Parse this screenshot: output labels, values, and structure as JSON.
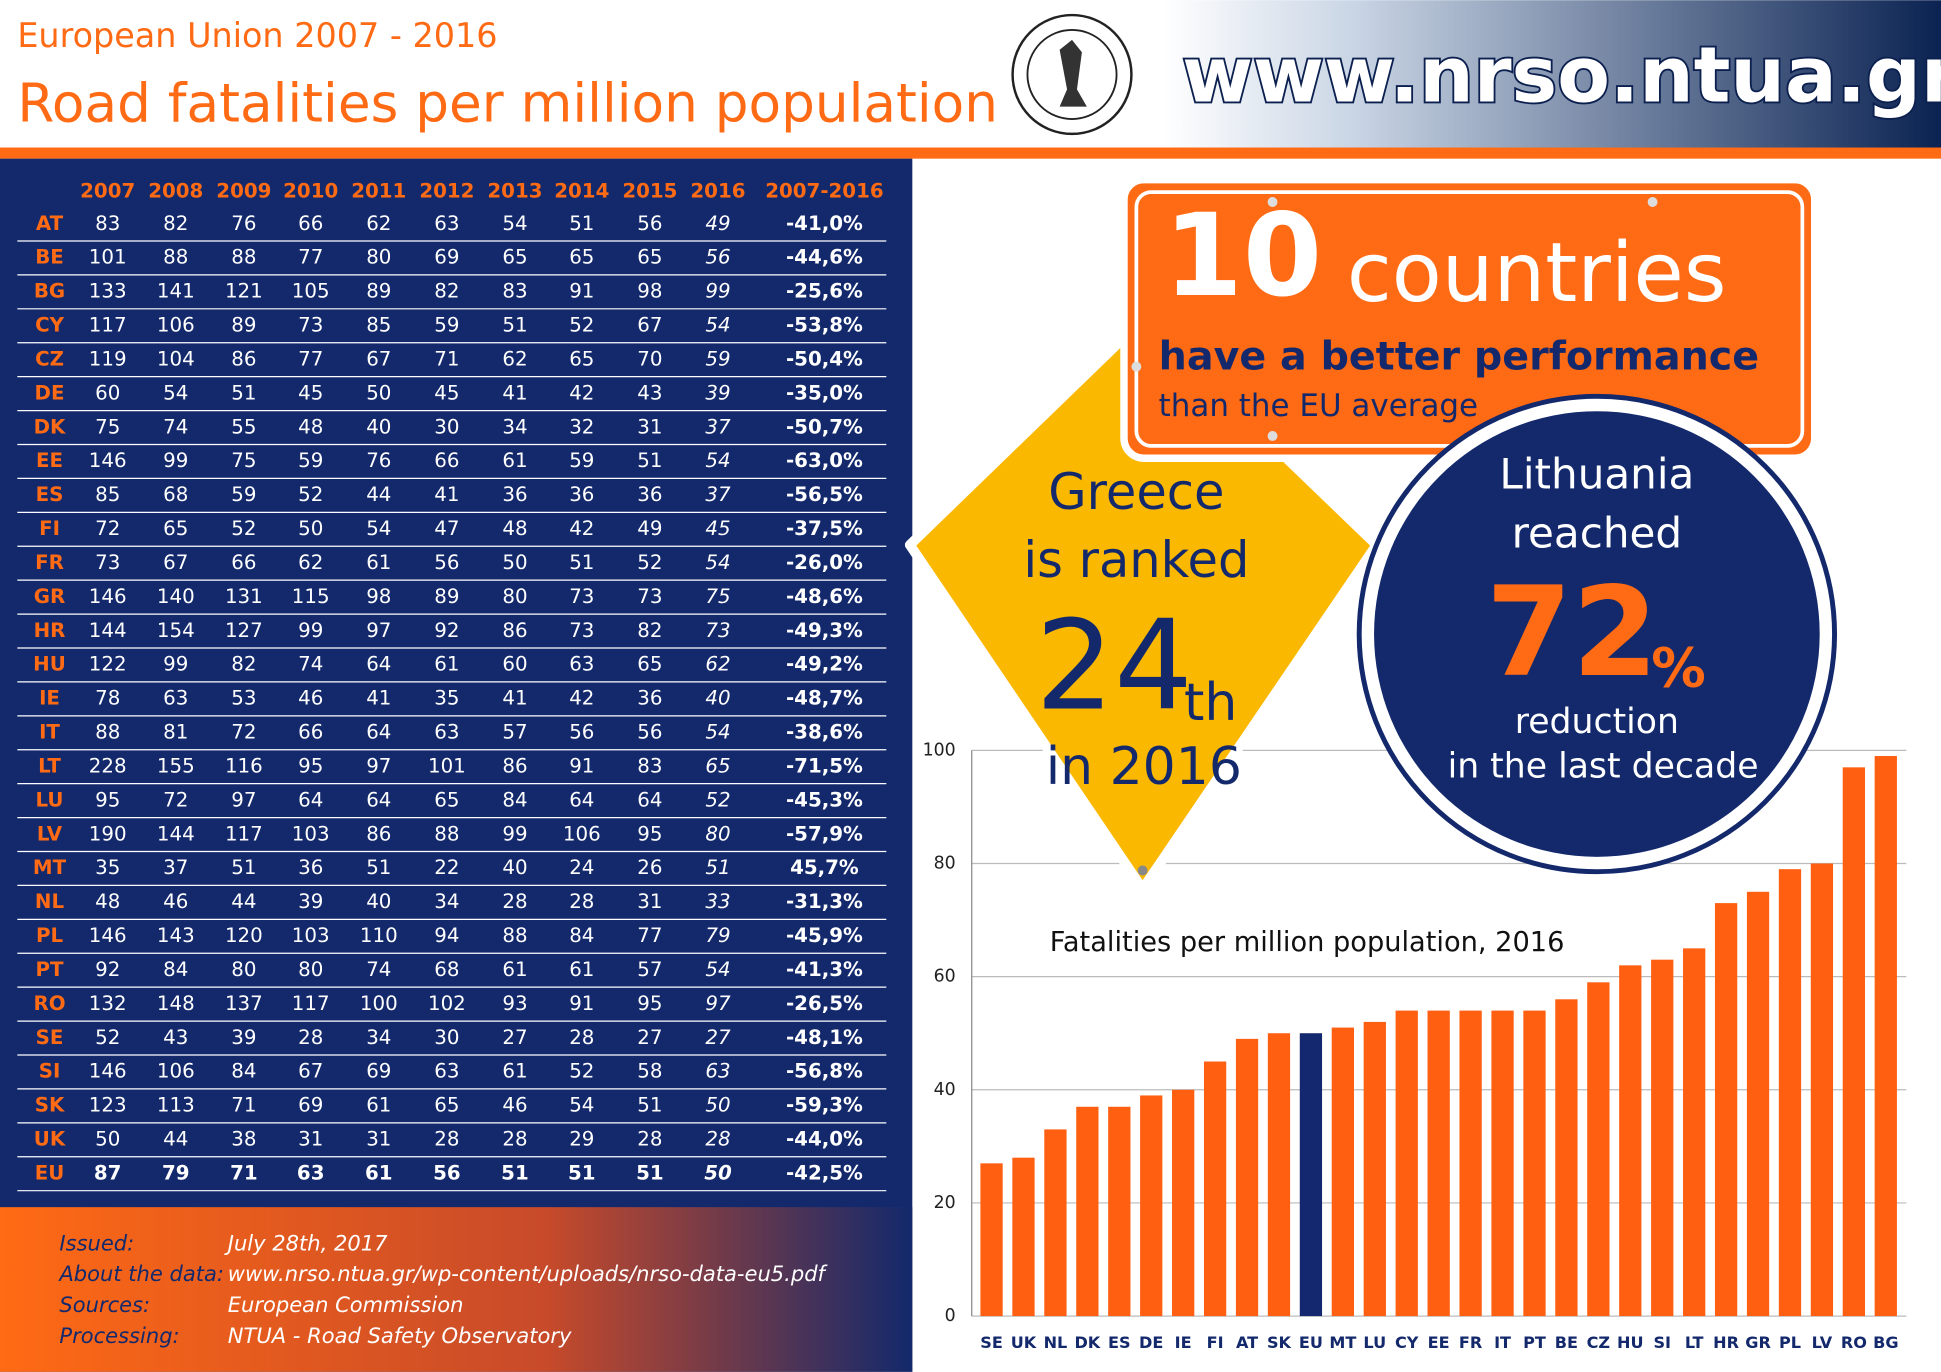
{
  "header": {
    "subtitle": "European Union 2007 - 2016",
    "title": "Road fatalities per million population",
    "url": "www.nrso.ntua.gr"
  },
  "table": {
    "columns": [
      "2007",
      "2008",
      "2009",
      "2010",
      "2011",
      "2012",
      "2013",
      "2014",
      "2015",
      "2016",
      "2007-2016"
    ],
    "rows": [
      {
        "label": "AT",
        "values": [
          83,
          82,
          76,
          66,
          62,
          63,
          54,
          51,
          56,
          49
        ],
        "change": "-41,0%"
      },
      {
        "label": "BE",
        "values": [
          101,
          88,
          88,
          77,
          80,
          69,
          65,
          65,
          65,
          56
        ],
        "change": "-44,6%"
      },
      {
        "label": "BG",
        "values": [
          133,
          141,
          121,
          105,
          89,
          82,
          83,
          91,
          98,
          99
        ],
        "change": "-25,6%"
      },
      {
        "label": "CY",
        "values": [
          117,
          106,
          89,
          73,
          85,
          59,
          51,
          52,
          67,
          54
        ],
        "change": "-53,8%"
      },
      {
        "label": "CZ",
        "values": [
          119,
          104,
          86,
          77,
          67,
          71,
          62,
          65,
          70,
          59
        ],
        "change": "-50,4%"
      },
      {
        "label": "DE",
        "values": [
          60,
          54,
          51,
          45,
          50,
          45,
          41,
          42,
          43,
          39
        ],
        "change": "-35,0%"
      },
      {
        "label": "DK",
        "values": [
          75,
          74,
          55,
          48,
          40,
          30,
          34,
          32,
          31,
          37
        ],
        "change": "-50,7%"
      },
      {
        "label": "EE",
        "values": [
          146,
          99,
          75,
          59,
          76,
          66,
          61,
          59,
          51,
          54
        ],
        "change": "-63,0%"
      },
      {
        "label": "ES",
        "values": [
          85,
          68,
          59,
          52,
          44,
          41,
          36,
          36,
          36,
          37
        ],
        "change": "-56,5%"
      },
      {
        "label": "FI",
        "values": [
          72,
          65,
          52,
          50,
          54,
          47,
          48,
          42,
          49,
          45
        ],
        "change": "-37,5%"
      },
      {
        "label": "FR",
        "values": [
          73,
          67,
          66,
          62,
          61,
          56,
          50,
          51,
          52,
          54
        ],
        "change": "-26,0%"
      },
      {
        "label": "GR",
        "values": [
          146,
          140,
          131,
          115,
          98,
          89,
          80,
          73,
          73,
          75
        ],
        "change": "-48,6%"
      },
      {
        "label": "HR",
        "values": [
          144,
          154,
          127,
          99,
          97,
          92,
          86,
          73,
          82,
          73
        ],
        "change": "-49,3%"
      },
      {
        "label": "HU",
        "values": [
          122,
          99,
          82,
          74,
          64,
          61,
          60,
          63,
          65,
          62
        ],
        "change": "-49,2%"
      },
      {
        "label": "IE",
        "values": [
          78,
          63,
          53,
          46,
          41,
          35,
          41,
          42,
          36,
          40
        ],
        "change": "-48,7%"
      },
      {
        "label": "IT",
        "values": [
          88,
          81,
          72,
          66,
          64,
          63,
          57,
          56,
          56,
          54
        ],
        "change": "-38,6%"
      },
      {
        "label": "LT",
        "values": [
          228,
          155,
          116,
          95,
          97,
          101,
          86,
          91,
          83,
          65
        ],
        "change": "-71,5%"
      },
      {
        "label": "LU",
        "values": [
          95,
          72,
          97,
          64,
          64,
          65,
          84,
          64,
          64,
          52
        ],
        "change": "-45,3%"
      },
      {
        "label": "LV",
        "values": [
          190,
          144,
          117,
          103,
          86,
          88,
          99,
          106,
          95,
          80
        ],
        "change": "-57,9%"
      },
      {
        "label": "MT",
        "values": [
          35,
          37,
          51,
          36,
          51,
          22,
          40,
          24,
          26,
          51
        ],
        "change": "45,7%"
      },
      {
        "label": "NL",
        "values": [
          48,
          46,
          44,
          39,
          40,
          34,
          28,
          28,
          31,
          33
        ],
        "change": "-31,3%"
      },
      {
        "label": "PL",
        "values": [
          146,
          143,
          120,
          103,
          110,
          94,
          88,
          84,
          77,
          79
        ],
        "change": "-45,9%"
      },
      {
        "label": "PT",
        "values": [
          92,
          84,
          80,
          80,
          74,
          68,
          61,
          61,
          57,
          54
        ],
        "change": "-41,3%"
      },
      {
        "label": "RO",
        "values": [
          132,
          148,
          137,
          117,
          100,
          102,
          93,
          91,
          95,
          97
        ],
        "change": "-26,5%"
      },
      {
        "label": "SE",
        "values": [
          52,
          43,
          39,
          28,
          34,
          30,
          27,
          28,
          27,
          27
        ],
        "change": "-48,1%"
      },
      {
        "label": "SI",
        "values": [
          146,
          106,
          84,
          67,
          69,
          63,
          61,
          52,
          58,
          63
        ],
        "change": "-56,8%"
      },
      {
        "label": "SK",
        "values": [
          123,
          113,
          71,
          69,
          61,
          65,
          46,
          54,
          51,
          50
        ],
        "change": "-59,3%"
      },
      {
        "label": "UK",
        "values": [
          50,
          44,
          38,
          31,
          31,
          28,
          28,
          29,
          28,
          28
        ],
        "change": "-44,0%"
      },
      {
        "label": "EU",
        "values": [
          87,
          79,
          71,
          63,
          61,
          56,
          51,
          51,
          51,
          50
        ],
        "change": "-42,5%"
      }
    ]
  },
  "callouts": {
    "better": {
      "number": "10",
      "word": "countries",
      "line1": "have a better performance",
      "line2": "than the EU average"
    },
    "greece": {
      "line1": "Greece",
      "line2": "is ranked",
      "rank": "24",
      "suffix": "th",
      "line3": "in 2016"
    },
    "lithuania": {
      "line1": "Lithuania",
      "line2": "reached",
      "number": "72",
      "suffix": "%",
      "line3": "reduction",
      "line4": "in the last decade"
    }
  },
  "chart_data": {
    "type": "bar",
    "title": "Fatalities per million population, 2016",
    "categories": [
      "SE",
      "UK",
      "NL",
      "DK",
      "ES",
      "DE",
      "IE",
      "FI",
      "AT",
      "SK",
      "EU",
      "MT",
      "LU",
      "CY",
      "EE",
      "FR",
      "IT",
      "PT",
      "BE",
      "CZ",
      "HU",
      "SI",
      "LT",
      "HR",
      "GR",
      "PL",
      "LV",
      "RO",
      "BG"
    ],
    "values": [
      27,
      28,
      33,
      37,
      37,
      39,
      40,
      45,
      49,
      50,
      50,
      51,
      52,
      54,
      54,
      54,
      54,
      54,
      56,
      59,
      62,
      63,
      65,
      73,
      75,
      79,
      80,
      97,
      99
    ],
    "colors": [
      "#ff5f10",
      "#ff5f10",
      "#ff5f10",
      "#ff5f10",
      "#ff5f10",
      "#ff5f10",
      "#ff5f10",
      "#ff5f10",
      "#ff5f10",
      "#ff5f10",
      "#13286e",
      "#ff5f10",
      "#ff5f10",
      "#ff5f10",
      "#ff5f10",
      "#ff5f10",
      "#ff5f10",
      "#ff5f10",
      "#ff5f10",
      "#ff5f10",
      "#ff5f10",
      "#ff5f10",
      "#ff5f10",
      "#ff5f10",
      "#ff5f10",
      "#ff5f10",
      "#ff5f10",
      "#ff5f10",
      "#ff5f10"
    ],
    "ylim": [
      0,
      100
    ],
    "yticks": [
      0,
      20,
      40,
      60,
      80,
      100
    ],
    "grid": true
  },
  "footer": [
    {
      "label": "Issued:",
      "value": "July 28th, 2017"
    },
    {
      "label": "About the data:",
      "value": "www.nrso.ntua.gr/wp-content/uploads/nrso-data-eu5.pdf"
    },
    {
      "label": "Sources:",
      "value": "European Commission"
    },
    {
      "label": "Processing:",
      "value": "NTUA - Road Safety Observatory"
    }
  ]
}
